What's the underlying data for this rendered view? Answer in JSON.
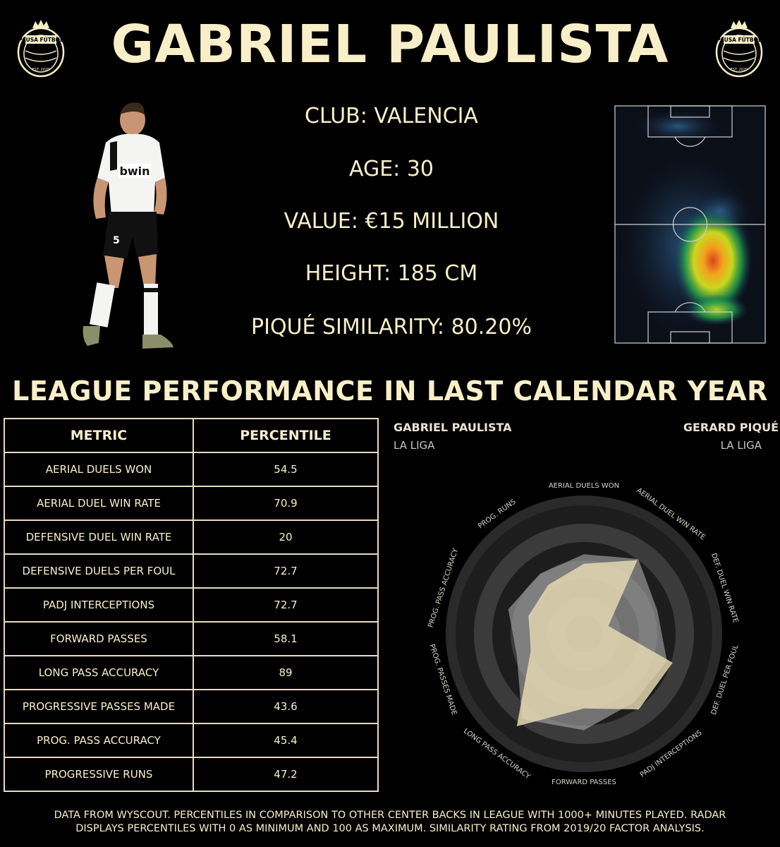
{
  "header": {
    "title": "GABRIEL PAULISTA",
    "logo_text": "PAUSA FÚTBOL",
    "logo_est": "EST. 2020"
  },
  "player": {
    "club": "CLUB: VALENCIA",
    "age": "AGE: 30",
    "value": "VALUE: €15 MILLION",
    "height": "HEIGHT: 185 CM",
    "similarity": "PIQUÉ SIMILARITY: 80.20%",
    "shirt_sponsor": "bwin",
    "shirt_number": "5"
  },
  "section_title": "LEAGUE PERFORMANCE IN LAST CALENDAR YEAR",
  "table": {
    "headers": [
      "METRIC",
      "PERCENTILE"
    ],
    "rows": [
      {
        "metric": "AERIAL DUELS WON",
        "percentile": "54.5"
      },
      {
        "metric": "AERIAL DUEL WIN RATE",
        "percentile": "70.9"
      },
      {
        "metric": "DEFENSIVE DUEL WIN RATE",
        "percentile": "20"
      },
      {
        "metric": "DEFENSIVE DUELS PER FOUL",
        "percentile": "72.7"
      },
      {
        "metric": "PADJ INTERCEPTIONS",
        "percentile": "72.7"
      },
      {
        "metric": "FORWARD PASSES",
        "percentile": "58.1"
      },
      {
        "metric": "LONG PASS ACCURACY",
        "percentile": "89"
      },
      {
        "metric": "PROGRESSIVE PASSES MADE",
        "percentile": "43.6"
      },
      {
        "metric": "PROG. PASS ACCURACY",
        "percentile": "45.4"
      },
      {
        "metric": "PROGRESSIVE RUNS",
        "percentile": "47.2"
      }
    ]
  },
  "radar_legend": {
    "player_a": {
      "name": "GABRIEL PAULISTA",
      "league": "LA LIGA"
    },
    "player_b": {
      "name": "GERARD PIQUÉ",
      "league": "LA LIGA"
    }
  },
  "chart_data": {
    "type": "radar",
    "axes": [
      "AERIAL DUELS WON",
      "AERIAL DUEL WIN RATE",
      "DEF. DUEL WIN RATE",
      "DEF. DUEL PER FOUL",
      "PADJ INTERCEPTIONS",
      "FORWARD PASSES",
      "LONG PASS ACCURACY",
      "PROG. PASSES MADE",
      "PROG. PASS ACCURACY",
      "PROG. RUNS"
    ],
    "range": [
      0,
      100
    ],
    "series": [
      {
        "name": "GABRIEL PAULISTA",
        "values": [
          54.5,
          70.9,
          20,
          72.7,
          72.7,
          58.1,
          89,
          43.6,
          45.4,
          47.2
        ],
        "color": "#e8dcb4"
      },
      {
        "name": "GERARD PIQUÉ",
        "values": [
          62,
          72,
          60,
          68,
          66,
          75,
          82,
          55,
          62,
          58
        ],
        "color": "#b8b8b8"
      }
    ]
  },
  "footnote": {
    "line1": "DATA FROM WYSCOUT. PERCENTILES IN COMPARISON TO OTHER CENTER BACKS IN LEAGUE WITH 1000+ MINUTES PLAYED. RADAR",
    "line2": "DISPLAYS PERCENTILES WITH 0 AS MINIMUM AND 100 AS MAXIMUM. SIMILARITY RATING FROM 2019/20 FACTOR ANALYSIS."
  },
  "colors": {
    "text": "#f8efc8",
    "background": "#000000",
    "player_fill": "#e8dcb4",
    "comparison_fill": "#b8b8b8"
  }
}
